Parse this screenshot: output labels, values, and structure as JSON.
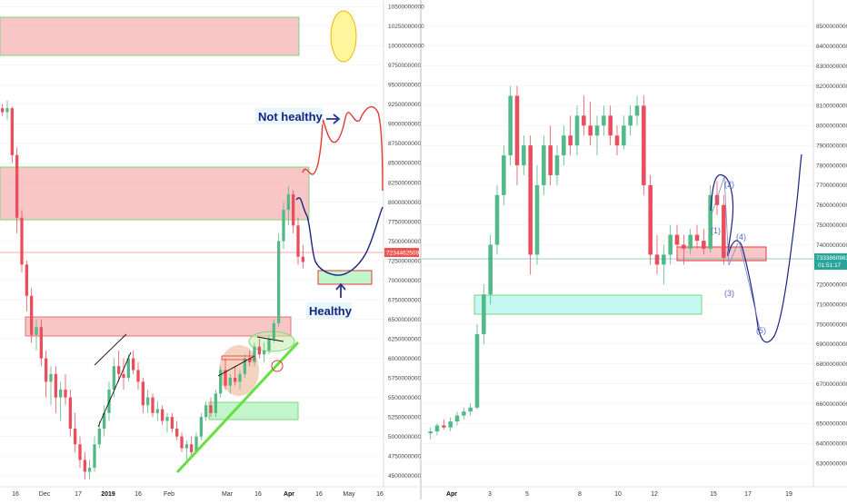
{
  "colors": {
    "up": "#53b987",
    "down": "#eb4d5c",
    "zone_red_fill": "rgba(246,168,170,0.65)",
    "zone_green_fill": "rgba(153,238,170,0.6)",
    "zone_cyan_fill": "rgba(178,245,238,0.75)",
    "trendline": "#66e040",
    "drawing_blue": "#1a237e",
    "drawing_red": "#e53935",
    "price_tag_red": "#ef5350",
    "price_tag_green": "#26a69a"
  },
  "left_chart": {
    "y_axis": {
      "ticks": [
        "10500000000",
        "10250000000",
        "10000000000",
        "9750000000",
        "9500000000",
        "9250000000",
        "9000000000",
        "8750000000",
        "8500000000",
        "8250000000",
        "8000000000",
        "7750000000",
        "7500000000",
        "7250000000",
        "7000000000",
        "6750000000",
        "6500000000",
        "6250000000",
        "6000000000",
        "5750000000",
        "5500000000",
        "5250000000",
        "5000000000",
        "4750000000",
        "4500000000"
      ],
      "range": [
        4450000000,
        10550000000
      ]
    },
    "x_axis": {
      "ticks": [
        "16",
        "Dec",
        "17",
        "2019",
        "16",
        "Feb",
        "Mar",
        "16",
        "Apr",
        "16",
        "May",
        "16"
      ],
      "bold": [
        "2019",
        "Apr"
      ]
    },
    "current_price": "7234462509",
    "annotations": {
      "not_healthy": "Not healthy",
      "healthy": "Healthy"
    },
    "series": {
      "type": "candlestick",
      "ohlc": [
        [
          9200,
          9250,
          9100,
          9150
        ],
        [
          9150,
          9300,
          9050,
          9200
        ],
        [
          9200,
          9220,
          8500,
          8600
        ],
        [
          8600,
          8700,
          7600,
          7800
        ],
        [
          7800,
          7900,
          7100,
          7200
        ],
        [
          7200,
          7250,
          6600,
          6800
        ],
        [
          6800,
          6900,
          6200,
          6300
        ],
        [
          6300,
          6500,
          6100,
          6400
        ],
        [
          6400,
          6500,
          5900,
          6000
        ],
        [
          6000,
          6100,
          5500,
          5700
        ],
        [
          5700,
          5900,
          5400,
          5800
        ],
        [
          5800,
          5900,
          5300,
          5500
        ],
        [
          5500,
          5700,
          5200,
          5600
        ],
        [
          5600,
          5800,
          5400,
          5500
        ],
        [
          5500,
          5600,
          5000,
          5100
        ],
        [
          5100,
          5300,
          4800,
          4900
        ],
        [
          4900,
          5000,
          4600,
          4700
        ],
        [
          4700,
          4800,
          4450,
          4550
        ],
        [
          4550,
          4700,
          4450,
          4600
        ],
        [
          4600,
          5000,
          4550,
          4900
        ],
        [
          4900,
          5200,
          4850,
          5100
        ],
        [
          5100,
          5400,
          5000,
          5300
        ],
        [
          5300,
          5700,
          5200,
          5600
        ],
        [
          5600,
          6000,
          5500,
          5900
        ],
        [
          5900,
          6100,
          5700,
          5800
        ],
        [
          5800,
          6000,
          5600,
          5750
        ],
        [
          5750,
          6050,
          5700,
          6000
        ],
        [
          6000,
          6100,
          5800,
          5850
        ],
        [
          5850,
          5950,
          5600,
          5700
        ],
        [
          5700,
          5750,
          5300,
          5400
        ],
        [
          5400,
          5600,
          5300,
          5500
        ],
        [
          5500,
          5550,
          5250,
          5300
        ],
        [
          5300,
          5450,
          5200,
          5350
        ],
        [
          5350,
          5400,
          5150,
          5200
        ],
        [
          5200,
          5300,
          5050,
          5250
        ],
        [
          5250,
          5300,
          5050,
          5100
        ],
        [
          5100,
          5200,
          4950,
          5000
        ],
        [
          5000,
          5050,
          4800,
          4850
        ],
        [
          4850,
          4950,
          4700,
          4900
        ],
        [
          4900,
          5000,
          4750,
          4800
        ],
        [
          4800,
          5050,
          4780,
          5000
        ],
        [
          5000,
          5300,
          4950,
          5250
        ],
        [
          5250,
          5450,
          5200,
          5400
        ],
        [
          5400,
          5500,
          5250,
          5300
        ],
        [
          5300,
          5600,
          5250,
          5550
        ],
        [
          5550,
          5900,
          5500,
          5850
        ],
        [
          5850,
          6000,
          5600,
          5650
        ],
        [
          5650,
          5800,
          5550,
          5750
        ],
        [
          5750,
          5900,
          5650,
          5700
        ],
        [
          5700,
          5850,
          5600,
          5800
        ],
        [
          5800,
          6050,
          5750,
          6000
        ],
        [
          6000,
          6100,
          5900,
          5950
        ],
        [
          5950,
          6200,
          5900,
          6150
        ],
        [
          6150,
          6250,
          6000,
          6050
        ],
        [
          6050,
          6200,
          5950,
          6100
        ],
        [
          6100,
          6300,
          6050,
          6250
        ],
        [
          6250,
          6500,
          6200,
          6450
        ],
        [
          6450,
          7600,
          6400,
          7500
        ],
        [
          7500,
          8000,
          7400,
          7900
        ],
        [
          7900,
          8200,
          7700,
          8100
        ],
        [
          8100,
          8150,
          7600,
          7700
        ],
        [
          7700,
          7800,
          7200,
          7300
        ],
        [
          7300,
          7450,
          7150,
          7234
        ]
      ]
    }
  },
  "right_chart": {
    "y_axis": {
      "ticks": [
        "8500000000",
        "8400000000",
        "8300000000",
        "8200000000",
        "8100000000",
        "8000000000",
        "7900000000",
        "7800000000",
        "7700000000",
        "7600000000",
        "7500000000",
        "7400000000",
        "7300000000",
        "7200000000",
        "7100000000",
        "7000000000",
        "6900000000",
        "6800000000",
        "6700000000",
        "6600000000",
        "6500000000",
        "6400000000",
        "6300000000"
      ],
      "range": [
        6250000000,
        8550000000
      ]
    },
    "x_axis": {
      "ticks": [
        "Apr",
        "3",
        "5",
        "8",
        "10",
        "12",
        "15",
        "17",
        "19"
      ],
      "bold": [
        "Apr"
      ]
    },
    "current_price": "7333860963",
    "countdown": "01:51:17",
    "wave_labels": [
      "(1)",
      "(2)",
      "(3)",
      "(4)",
      "(5)"
    ],
    "series": {
      "type": "candlestick",
      "ohlc": [
        [
          6450,
          6480,
          6420,
          6460
        ],
        [
          6460,
          6500,
          6440,
          6490
        ],
        [
          6490,
          6520,
          6470,
          6480
        ],
        [
          6480,
          6530,
          6460,
          6510
        ],
        [
          6510,
          6560,
          6490,
          6540
        ],
        [
          6540,
          6580,
          6520,
          6560
        ],
        [
          6560,
          6600,
          6540,
          6580
        ],
        [
          6580,
          7000,
          6570,
          6950
        ],
        [
          6950,
          7200,
          6900,
          7150
        ],
        [
          7150,
          7450,
          7100,
          7400
        ],
        [
          7400,
          7700,
          7350,
          7650
        ],
        [
          7650,
          7900,
          7600,
          7850
        ],
        [
          7850,
          8200,
          7800,
          8150
        ],
        [
          8150,
          8200,
          7700,
          7800
        ],
        [
          7800,
          7950,
          7750,
          7900
        ],
        [
          7900,
          7950,
          7250,
          7350
        ],
        [
          7350,
          7800,
          7300,
          7700
        ],
        [
          7700,
          7950,
          7650,
          7900
        ],
        [
          7900,
          8000,
          7700,
          7750
        ],
        [
          7750,
          7900,
          7700,
          7850
        ],
        [
          7850,
          8000,
          7800,
          7950
        ],
        [
          7950,
          8050,
          7850,
          7900
        ],
        [
          7900,
          8100,
          7850,
          8050
        ],
        [
          8050,
          8150,
          7950,
          8000
        ],
        [
          8000,
          8120,
          7900,
          7950
        ],
        [
          7950,
          8050,
          7850,
          8000
        ],
        [
          8000,
          8100,
          7950,
          8050
        ],
        [
          8050,
          8100,
          7900,
          7950
        ],
        [
          7950,
          8000,
          7850,
          7900
        ],
        [
          7900,
          8050,
          7880,
          8000
        ],
        [
          8000,
          8100,
          7950,
          8050
        ],
        [
          8050,
          8150,
          8000,
          8100
        ],
        [
          8100,
          8150,
          7650,
          7700
        ],
        [
          7700,
          7750,
          7300,
          7350
        ],
        [
          7350,
          7450,
          7250,
          7300
        ],
        [
          7300,
          7400,
          7200,
          7350
        ],
        [
          7350,
          7500,
          7300,
          7450
        ],
        [
          7450,
          7500,
          7350,
          7400
        ],
        [
          7400,
          7450,
          7300,
          7380
        ],
        [
          7380,
          7480,
          7350,
          7450
        ],
        [
          7450,
          7500,
          7380,
          7420
        ],
        [
          7420,
          7480,
          7350,
          7380
        ],
        [
          7380,
          7700,
          7360,
          7650
        ],
        [
          7650,
          7720,
          7550,
          7600
        ],
        [
          7600,
          7650,
          7300,
          7334
        ]
      ]
    }
  }
}
